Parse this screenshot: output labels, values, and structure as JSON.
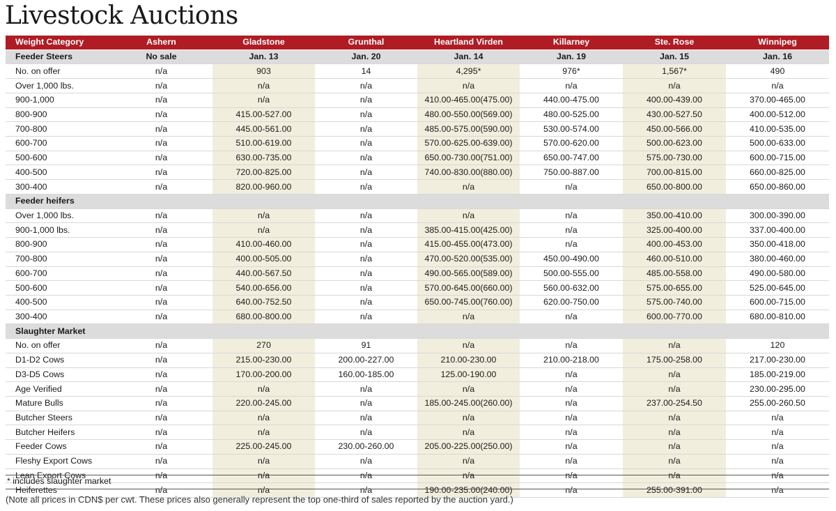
{
  "title": "Livestock Auctions",
  "header": [
    "Weight Category",
    "Ashern",
    "Gladstone",
    "Grunthal",
    "Heartland Virden",
    "Killarney",
    "Ste. Rose",
    "Winnipeg"
  ],
  "sections": [
    {
      "label": "Feeder Steers",
      "dates": [
        "No sale",
        "Jan. 13",
        "Jan. 20",
        "Jan. 14",
        "Jan. 19",
        "Jan. 15",
        "Jan. 16"
      ],
      "rows": [
        [
          "No. on offer",
          "n/a",
          "903",
          "14",
          "4,295*",
          "976*",
          "1,567*",
          "490"
        ],
        [
          "Over 1,000 lbs.",
          "n/a",
          "n/a",
          "n/a",
          "n/a",
          "n/a",
          "n/a",
          "n/a"
        ],
        [
          "900-1,000",
          "n/a",
          "n/a",
          "n/a",
          "410.00-465.00(475.00)",
          "440.00-475.00",
          "400.00-439.00",
          "370.00-465.00"
        ],
        [
          "800-900",
          "n/a",
          "415.00-527.00",
          "n/a",
          "480.00-550.00(569.00)",
          "480.00-525.00",
          "430.00-527.50",
          "400.00-512.00"
        ],
        [
          "700-800",
          "n/a",
          "445.00-561.00",
          "n/a",
          "485.00-575.00(590.00)",
          "530.00-574.00",
          "450.00-566.00",
          "410.00-535.00"
        ],
        [
          "600-700",
          "n/a",
          "510.00-619.00",
          "n/a",
          "570.00-625.00-639.00)",
          "570.00-620.00",
          "500.00-623.00",
          "500.00-633.00"
        ],
        [
          "500-600",
          "n/a",
          "630.00-735.00",
          "n/a",
          "650.00-730.00(751.00)",
          "650.00-747.00",
          "575.00-730.00",
          "600.00-715.00"
        ],
        [
          "400-500",
          "n/a",
          "720.00-825.00",
          "n/a",
          "740.00-830.00(880.00)",
          "750.00-887.00",
          "700.00-815.00",
          "660.00-825.00"
        ],
        [
          "300-400",
          "n/a",
          "820.00-960.00",
          "n/a",
          "n/a",
          "n/a",
          "650.00-800.00",
          "650.00-860.00"
        ]
      ]
    },
    {
      "label": "Feeder heifers",
      "dates": [
        "",
        "",
        "",
        "",
        "",
        "",
        ""
      ],
      "rows": [
        [
          "Over 1,000 lbs.",
          "n/a",
          "n/a",
          "n/a",
          "n/a",
          "n/a",
          "350.00-410.00",
          "300.00-390.00"
        ],
        [
          "900-1,000 lbs.",
          "n/a",
          "n/a",
          "n/a",
          "385.00-415.00(425.00)",
          "n/a",
          "325.00-400.00",
          "337.00-400.00"
        ],
        [
          "800-900",
          "n/a",
          "410.00-460.00",
          "n/a",
          "415.00-455.00(473.00)",
          "n/a",
          "400.00-453.00",
          "350.00-418.00"
        ],
        [
          "700-800",
          "n/a",
          "400.00-505.00",
          "n/a",
          "470.00-520.00(535.00)",
          "450.00-490.00",
          "460.00-510.00",
          "380.00-460.00"
        ],
        [
          "600-700",
          "n/a",
          "440.00-567.50",
          "n/a",
          "490.00-565.00(589.00)",
          "500.00-555.00",
          "485.00-558.00",
          "490.00-580.00"
        ],
        [
          "500-600",
          "n/a",
          "540.00-656.00",
          "n/a",
          "570.00-645.00(660.00)",
          "560.00-632.00",
          "575.00-655.00",
          "525.00-645.00"
        ],
        [
          "400-500",
          "n/a",
          "640.00-752.50",
          "n/a",
          "650.00-745.00(760.00)",
          "620.00-750.00",
          "575.00-740.00",
          "600.00-715.00"
        ],
        [
          "300-400",
          "n/a",
          "680.00-800.00",
          "n/a",
          "n/a",
          "n/a",
          "600.00-770.00",
          "680.00-810.00"
        ]
      ]
    },
    {
      "label": "Slaughter Market",
      "dates": [
        "",
        "",
        "",
        "",
        "",
        "",
        ""
      ],
      "rows": [
        [
          "No. on offer",
          "n/a",
          "270",
          "91",
          "n/a",
          "n/a",
          "n/a",
          "120"
        ],
        [
          "D1-D2 Cows",
          "n/a",
          "215.00-230.00",
          "200.00-227.00",
          "210.00-230.00",
          "210.00-218.00",
          "175.00-258.00",
          "217.00-230.00"
        ],
        [
          "D3-D5 Cows",
          "n/a",
          "170.00-200.00",
          "160.00-185.00",
          "125.00-190.00",
          "n/a",
          "n/a",
          "185.00-219.00"
        ],
        [
          "Age Verified",
          "n/a",
          "n/a",
          "n/a",
          "n/a",
          "n/a",
          "n/a",
          "230.00-295.00"
        ],
        [
          "Mature Bulls",
          "n/a",
          "220.00-245.00",
          "n/a",
          "185.00-245.00(260.00)",
          "n/a",
          "237.00-254.50",
          "255.00-260.50"
        ],
        [
          "Butcher Steers",
          "n/a",
          "n/a",
          "n/a",
          "n/a",
          "n/a",
          "n/a",
          "n/a"
        ],
        [
          "Butcher Heifers",
          "n/a",
          "n/a",
          "n/a",
          "n/a",
          "n/a",
          "n/a",
          "n/a"
        ],
        [
          "Feeder Cows",
          "n/a",
          "225.00-245.00",
          "230.00-260.00",
          "205.00-225.00(250.00)",
          "n/a",
          "n/a",
          "n/a"
        ],
        [
          "Fleshy Export Cows",
          "n/a",
          "n/a",
          "n/a",
          "n/a",
          "n/a",
          "n/a",
          "n/a"
        ],
        [
          "Lean Export Cows",
          "n/a",
          "n/a",
          "n/a",
          "n/a",
          "n/a",
          "n/a",
          "n/a"
        ],
        [
          "Heiferettes",
          "n/a",
          "n/a",
          "n/a",
          "190.00-235.00(240.00)",
          "n/a",
          "255.00-391.00",
          "n/a"
        ]
      ]
    }
  ],
  "footnote": "* includes slaughter market",
  "note": "(Note all prices in CDN$ per cwt. These prices also generally represent the top one-third of sales reported by the auction yard.)"
}
